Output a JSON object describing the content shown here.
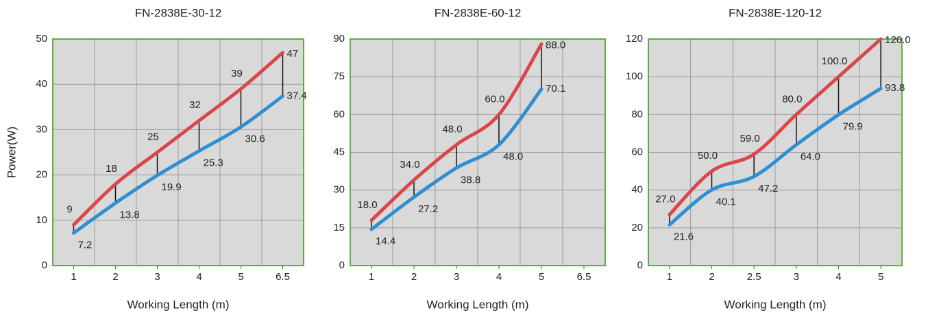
{
  "chart_data": [
    {
      "type": "line",
      "title": "FN-2838E-30-12",
      "xlabel": "Working Length (m)",
      "ylabel": "Power(W)",
      "categories": [
        "1",
        "2",
        "3",
        "4",
        "5",
        "6.5"
      ],
      "series": [
        {
          "color": "#d9474a",
          "values": [
            9,
            18,
            25,
            32,
            39,
            47
          ]
        },
        {
          "color": "#2f8fd0",
          "values": [
            7.2,
            13.8,
            19.9,
            25.3,
            30.6,
            37.4
          ]
        }
      ],
      "ylim": [
        0,
        50
      ],
      "yticks": [
        0,
        10,
        20,
        30,
        40,
        50
      ],
      "grid": true
    },
    {
      "type": "line",
      "title": "FN-2838E-60-12",
      "xlabel": "Working Length (m)",
      "categories": [
        "1",
        "2",
        "3",
        "4",
        "5",
        "6.5"
      ],
      "series": [
        {
          "color": "#d9474a",
          "values": [
            18,
            34,
            48,
            60,
            88,
            null
          ],
          "value_labels": [
            "18.0",
            "34.0",
            "48.0",
            "60.0",
            "88.0",
            null
          ]
        },
        {
          "color": "#2f8fd0",
          "values": [
            14.4,
            27.2,
            38.8,
            48,
            70.1,
            null
          ],
          "value_labels": [
            "14.4",
            "27.2",
            "38.8",
            "48.0",
            "70.1",
            null
          ]
        }
      ],
      "ylim": [
        0,
        90
      ],
      "yticks": [
        0,
        15,
        30,
        45,
        60,
        75,
        90
      ],
      "grid": true
    },
    {
      "type": "line",
      "title": "FN-2838E-120-12",
      "xlabel": "Working Length (m)",
      "categories": [
        "1",
        "2",
        "2.5",
        "3",
        "4",
        "5"
      ],
      "series": [
        {
          "color": "#d9474a",
          "values": [
            27,
            50,
            59,
            80,
            100,
            120
          ],
          "value_labels": [
            "27.0",
            "50.0",
            "59.0",
            "80.0",
            "100.0",
            "120.0"
          ]
        },
        {
          "color": "#2f8fd0",
          "values": [
            21.6,
            40.1,
            47.2,
            64,
            79.9,
            93.8
          ],
          "value_labels": [
            "21.6",
            "40.1",
            "47.2",
            "64.0",
            "79.9",
            "93.8"
          ]
        }
      ],
      "ylim": [
        0,
        120
      ],
      "yticks": [
        0,
        20,
        40,
        60,
        80,
        100,
        120
      ],
      "grid": true
    }
  ]
}
